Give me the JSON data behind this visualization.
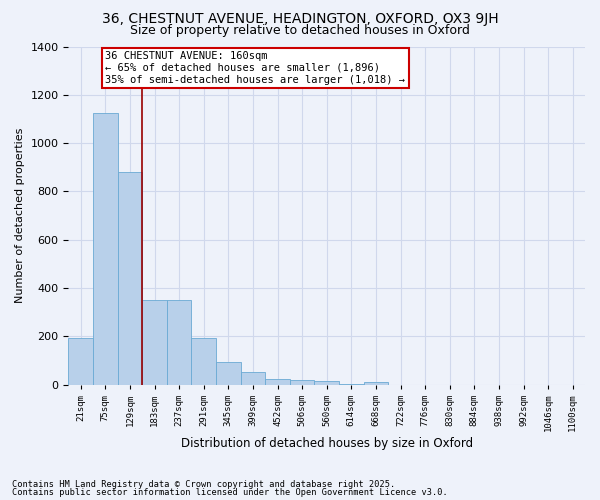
{
  "title_line1": "36, CHESTNUT AVENUE, HEADINGTON, OXFORD, OX3 9JH",
  "title_line2": "Size of property relative to detached houses in Oxford",
  "xlabel": "Distribution of detached houses by size in Oxford",
  "ylabel": "Number of detached properties",
  "categories": [
    "21sqm",
    "75sqm",
    "129sqm",
    "183sqm",
    "237sqm",
    "291sqm",
    "345sqm",
    "399sqm",
    "452sqm",
    "506sqm",
    "560sqm",
    "614sqm",
    "668sqm",
    "722sqm",
    "776sqm",
    "830sqm",
    "884sqm",
    "938sqm",
    "992sqm",
    "1046sqm",
    "1100sqm"
  ],
  "values": [
    195,
    1125,
    880,
    350,
    350,
    195,
    95,
    55,
    25,
    20,
    15,
    5,
    10,
    0,
    0,
    0,
    0,
    0,
    0,
    0,
    0
  ],
  "bar_color": "#b8d0ea",
  "bar_edge_color": "#6aaad4",
  "grid_color": "#d0d8ec",
  "background_color": "#eef2fa",
  "vline_x_pos": 2.5,
  "vline_color": "#990000",
  "annotation_text": "36 CHESTNUT AVENUE: 160sqm\n← 65% of detached houses are smaller (1,896)\n35% of semi-detached houses are larger (1,018) →",
  "annotation_box_facecolor": "#ffffff",
  "annotation_box_edgecolor": "#cc0000",
  "ylim": [
    0,
    1400
  ],
  "yticks": [
    0,
    200,
    400,
    600,
    800,
    1000,
    1200,
    1400
  ],
  "footer_line1": "Contains HM Land Registry data © Crown copyright and database right 2025.",
  "footer_line2": "Contains public sector information licensed under the Open Government Licence v3.0."
}
